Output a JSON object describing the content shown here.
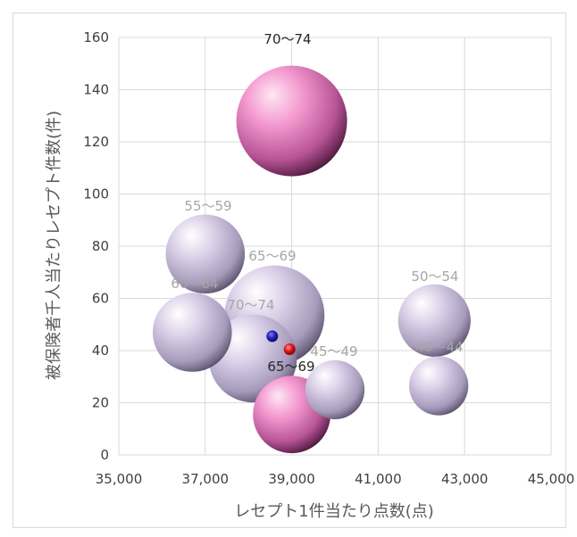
{
  "chart_data": {
    "type": "bubble",
    "xlabel": "レセプト1件当たり点数(点)",
    "ylabel": "被保険者千人当たりレセプト件数(件)",
    "xlim": [
      35000,
      45000
    ],
    "ylim": [
      0,
      160
    ],
    "x_ticks": [
      "35,000",
      "37,000",
      "39,000",
      "41,000",
      "43,000",
      "45,000"
    ],
    "y_ticks": [
      "0",
      "20",
      "40",
      "60",
      "80",
      "100",
      "120",
      "140",
      "160"
    ],
    "grid": "vertical-and-horizontal",
    "colors": {
      "pink": "#f49ad0",
      "lavender": "#ddd3ea",
      "gray_label": "#a6a6a6",
      "dark_label": "#262626",
      "blue_marker": "#1f1fb4",
      "red_marker": "#e01010"
    },
    "bubbles": [
      {
        "x": 39000,
        "y": 128,
        "size": 49,
        "color": "pink",
        "label": "70～74",
        "label_color": "dark"
      },
      {
        "x": 38600,
        "y": 53.5,
        "size": 40,
        "color": "lavender",
        "label": "70～74",
        "label_color": "gray"
      },
      {
        "x": 38100,
        "y": 37,
        "size": 31,
        "color": "lavender",
        "label": "",
        "label_color": "gray"
      },
      {
        "x": 37000,
        "y": 77,
        "size": 25,
        "color": "lavender",
        "label": "55～59",
        "label_color": "gray"
      },
      {
        "x": 36700,
        "y": 47,
        "size": 25,
        "color": "lavender",
        "label": "60～64",
        "label_color": "gray"
      },
      {
        "x": 39000,
        "y": 15.5,
        "size": 24,
        "color": "pink",
        "label": "65～69",
        "label_color": "dark"
      },
      {
        "x": 42300,
        "y": 51.5,
        "size": 21,
        "color": "lavender",
        "label": "50～54",
        "label_color": "gray"
      },
      {
        "x": 42400,
        "y": 26.5,
        "size": 14,
        "color": "lavender",
        "label": "40～44",
        "label_color": "gray"
      },
      {
        "x": 40000,
        "y": 25,
        "size": 14,
        "color": "lavender",
        "label": "45～49",
        "label_color": "gray"
      }
    ],
    "extra_labels": [
      {
        "text": "65～69",
        "color": "gray"
      }
    ],
    "markers": [
      {
        "x": 38550,
        "y": 45.5,
        "color": "blue"
      },
      {
        "x": 38950,
        "y": 40.5,
        "color": "red"
      }
    ]
  }
}
